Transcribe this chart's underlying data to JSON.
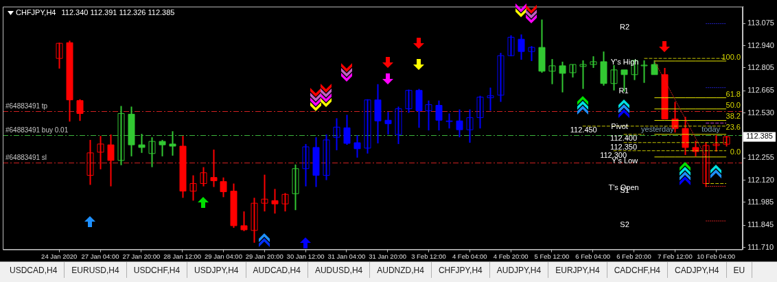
{
  "chart_data": {
    "type": "candlestick",
    "title": "CHFJPY,H4",
    "subtitle": "112.340 112.391 112.326 112.385",
    "categories": [
      "24 Jan 2020",
      null,
      null,
      null,
      "27 Jan 04:00",
      null,
      null,
      null,
      "27 Jan 20:00",
      null,
      null,
      null,
      "28 Jan 12:00",
      null,
      null,
      null,
      "29 Jan 04:00",
      null,
      null,
      null,
      "29 Jan 20:00",
      null,
      null,
      null,
      "30 Jan 12:00",
      null,
      null,
      null,
      "31 Jan 04:00",
      null,
      null,
      null,
      "31 Jan 20:00",
      null,
      null,
      null,
      "3 Feb 12:00",
      null,
      null,
      null,
      "4 Feb 04:00",
      null,
      null,
      null,
      "4 Feb 20:00",
      null,
      null,
      null,
      "5 Feb 12:00",
      null,
      null,
      null,
      "6 Feb 04:00",
      null,
      null,
      null,
      "6 Feb 20:00",
      null,
      null,
      null,
      "7 Feb 12:00",
      null,
      null,
      null,
      "10 Feb 04:00",
      null
    ],
    "ohlc": [
      [
        112.863,
        112.959,
        112.801,
        112.955
      ],
      [
        112.959,
        112.971,
        112.478,
        112.61
      ],
      [
        112.606,
        112.614,
        112.482,
        112.527
      ],
      [
        112.15,
        112.366,
        112.092,
        112.287
      ],
      [
        112.291,
        112.39,
        112.187,
        112.341
      ],
      [
        112.336,
        112.399,
        112.083,
        112.241
      ],
      [
        112.241,
        112.573,
        112.212,
        112.527
      ],
      [
        112.523,
        112.569,
        112.266,
        112.336
      ],
      [
        112.336,
        112.403,
        112.287,
        112.32
      ],
      [
        112.283,
        112.382,
        112.2,
        112.357
      ],
      [
        112.357,
        112.366,
        112.266,
        112.336
      ],
      [
        112.341,
        112.419,
        112.27,
        112.328
      ],
      [
        112.328,
        112.39,
        112.013,
        112.054
      ],
      [
        112.054,
        112.15,
        111.996,
        112.1
      ],
      [
        112.1,
        112.2,
        112.083,
        112.166
      ],
      [
        112.137,
        112.307,
        112.079,
        112.117
      ],
      [
        112.112,
        112.137,
        112.017,
        112.05
      ],
      [
        112.054,
        112.1,
        111.83,
        111.843
      ],
      [
        111.843,
        111.93,
        111.81,
        111.818
      ],
      [
        111.814,
        112.013,
        111.739,
        111.98
      ],
      [
        111.98,
        112.154,
        111.93,
        112.005
      ],
      [
        111.996,
        112.067,
        111.917,
        111.976
      ],
      [
        111.976,
        112.042,
        111.93,
        112.034
      ],
      [
        112.038,
        112.216,
        111.938,
        112.191
      ],
      [
        112.191,
        112.341,
        112.083,
        112.324
      ],
      [
        112.32,
        112.382,
        112.079,
        112.15
      ],
      [
        112.15,
        112.399,
        112.121,
        112.366
      ],
      [
        112.382,
        112.498,
        112.303,
        112.444
      ],
      [
        112.44,
        112.519,
        112.336,
        112.345
      ],
      [
        112.349,
        112.395,
        112.258,
        112.312
      ],
      [
        112.316,
        112.614,
        112.283,
        112.61
      ],
      [
        112.61,
        112.706,
        112.345,
        112.482
      ],
      [
        112.486,
        112.536,
        112.399,
        112.465
      ],
      [
        112.399,
        112.569,
        112.341,
        112.556
      ],
      [
        112.556,
        112.673,
        112.531,
        112.668
      ],
      [
        112.668,
        112.677,
        112.44,
        112.544
      ],
      [
        112.544,
        112.606,
        112.424,
        112.581
      ],
      [
        112.577,
        112.606,
        112.424,
        112.486
      ],
      [
        112.482,
        112.527,
        112.436,
        112.482
      ],
      [
        112.482,
        112.552,
        112.382,
        112.428
      ],
      [
        112.428,
        112.552,
        112.349,
        112.502
      ],
      [
        112.502,
        112.635,
        112.436,
        112.627
      ],
      [
        112.623,
        112.685,
        112.544,
        112.635
      ],
      [
        112.639,
        112.897,
        112.598,
        112.88
      ],
      [
        112.88,
        113.004,
        112.876,
        112.992
      ],
      [
        112.98,
        113.009,
        112.855,
        112.905
      ],
      [
        112.905,
        112.938,
        112.847,
        112.93
      ],
      [
        112.93,
        113.1,
        112.776,
        112.785
      ],
      [
        112.785,
        112.859,
        112.706,
        112.818
      ],
      [
        112.818,
        112.843,
        112.656,
        112.772
      ],
      [
        112.776,
        112.826,
        112.747,
        112.826
      ],
      [
        112.814,
        112.851,
        112.677,
        112.826
      ],
      [
        112.826,
        112.876,
        112.805,
        112.843
      ],
      [
        112.843,
        112.905,
        112.697,
        112.71
      ],
      [
        112.71,
        112.822,
        112.668,
        112.793
      ],
      [
        112.793,
        112.793,
        112.66,
        112.764
      ],
      [
        112.764,
        112.851,
        112.731,
        112.851
      ],
      [
        112.822,
        112.851,
        112.714,
        112.822
      ],
      [
        112.826,
        112.851,
        112.764,
        112.764
      ],
      [
        112.764,
        112.805,
        112.494,
        112.494
      ],
      [
        112.494,
        112.598,
        112.411,
        112.436
      ],
      [
        112.436,
        112.507,
        112.274,
        112.32
      ],
      [
        112.32,
        112.361,
        112.266,
        112.295
      ],
      [
        112.1,
        112.353,
        112.079,
        112.332
      ],
      [
        112.332,
        112.395,
        112.295,
        112.341
      ],
      [
        112.34,
        112.391,
        112.326,
        112.385
      ]
    ],
    "colors": [
      "#ff0000",
      "#ff0000",
      "#ff0000",
      "#ff0000",
      "#ff0000",
      "#ff0000",
      "#32c832",
      "#32c832",
      "#32c832",
      "#32c832",
      "#32c832",
      "#32c832",
      "#ff0000",
      "#ff0000",
      "#ff0000",
      "#ff0000",
      "#ff0000",
      "#ff0000",
      "#ff0000",
      "#ff0000",
      "#ff0000",
      "#ff0000",
      "#ff0000",
      "#32c832",
      "#0000ff",
      "#0000ff",
      "#0000ff",
      "#0000ff",
      "#0000ff",
      "#0000ff",
      "#0000ff",
      "#0000ff",
      "#0000ff",
      "#0000ff",
      "#0000ff",
      "#0000ff",
      "#0000ff",
      "#0000ff",
      "#0000ff",
      "#0000ff",
      "#0000ff",
      "#0000ff",
      "#0000ff",
      "#0000ff",
      "#0000ff",
      "#0000ff",
      "#0000ff",
      "#32c832",
      "#32c832",
      "#32c832",
      "#32c832",
      "#32c832",
      "#32c832",
      "#32c832",
      "#32c832",
      "#32c832",
      "#32c832",
      "#32c832",
      "#32c832",
      "#ff0000",
      "#ff0000",
      "#ff0000",
      "#ff0000",
      "#ff0000",
      "#ff0000",
      "#ff0000"
    ],
    "series": [
      {
        "type": "line",
        "color": "#c8c800",
        "line_style": "dashed",
        "values": [
          null,
          null,
          null,
          null,
          null,
          null,
          null,
          null,
          null,
          null,
          null,
          null,
          null,
          null,
          null,
          null,
          null,
          null,
          null,
          null,
          null,
          null,
          null,
          null,
          null,
          null,
          null,
          null,
          null,
          null,
          null,
          null,
          null,
          null,
          null,
          null,
          null,
          null,
          null,
          null,
          null,
          null,
          null,
          null,
          null,
          null,
          null,
          null,
          null,
          null,
          null,
          112.45,
          112.45,
          112.45,
          112.45,
          112.45,
          112.45,
          112.45,
          112.45,
          112.45,
          112.45,
          112.45,
          112.45,
          112.45,
          112.45,
          112.45
        ]
      },
      {
        "type": "line",
        "color": "#c8c800",
        "line_style": "dashed",
        "values": [
          null,
          null,
          null,
          null,
          null,
          null,
          null,
          null,
          null,
          null,
          null,
          null,
          null,
          null,
          null,
          null,
          null,
          null,
          null,
          null,
          null,
          null,
          null,
          null,
          null,
          null,
          null,
          null,
          null,
          null,
          null,
          null,
          null,
          null,
          null,
          null,
          null,
          null,
          null,
          null,
          null,
          null,
          null,
          null,
          null,
          null,
          null,
          null,
          null,
          null,
          null,
          null,
          null,
          null,
          null,
          112.4,
          112.4,
          112.4,
          null,
          null,
          null,
          null,
          null,
          null,
          null,
          null
        ]
      },
      {
        "type": "line",
        "color": "#c8c800",
        "line_style": "dashed",
        "values": [
          null,
          null,
          null,
          null,
          null,
          null,
          null,
          null,
          null,
          null,
          null,
          null,
          null,
          null,
          null,
          null,
          null,
          null,
          null,
          null,
          null,
          null,
          null,
          null,
          null,
          null,
          null,
          null,
          null,
          null,
          null,
          null,
          null,
          null,
          null,
          null,
          null,
          null,
          null,
          null,
          null,
          null,
          null,
          null,
          null,
          null,
          null,
          null,
          null,
          null,
          null,
          null,
          null,
          null,
          null,
          112.35,
          112.35,
          112.35,
          112.35,
          112.35,
          112.35,
          112.35,
          112.35,
          112.35,
          112.35,
          112.35
        ]
      },
      {
        "type": "line",
        "color": "#c8c800",
        "line_style": "dashed",
        "values": [
          null,
          null,
          null,
          null,
          null,
          null,
          null,
          null,
          null,
          null,
          null,
          null,
          null,
          null,
          null,
          null,
          null,
          null,
          null,
          null,
          null,
          null,
          null,
          null,
          null,
          null,
          null,
          null,
          null,
          null,
          null,
          null,
          null,
          null,
          null,
          null,
          null,
          null,
          null,
          null,
          null,
          null,
          null,
          null,
          null,
          null,
          null,
          null,
          null,
          null,
          null,
          null,
          null,
          null,
          112.3,
          112.3,
          112.3,
          112.3,
          112.3,
          112.3,
          112.3,
          112.3,
          112.3,
          112.3,
          112.3,
          112.3
        ]
      },
      {
        "type": "line",
        "color": "#c8c800",
        "line_style": "dashed",
        "values": [
          null,
          null,
          null,
          null,
          null,
          null,
          null,
          null,
          null,
          null,
          null,
          null,
          null,
          null,
          null,
          null,
          null,
          null,
          null,
          null,
          null,
          null,
          null,
          null,
          null,
          null,
          null,
          null,
          null,
          null,
          null,
          null,
          null,
          null,
          null,
          null,
          null,
          null,
          null,
          null,
          null,
          null,
          null,
          null,
          null,
          null,
          null,
          null,
          null,
          null,
          null,
          null,
          null,
          null,
          null,
          null,
          null,
          112.863,
          112.863,
          112.863,
          112.863,
          112.863,
          112.863,
          112.863,
          112.863,
          112.863
        ]
      },
      {
        "type": "line",
        "color": "#e6e600",
        "line_style": "solid",
        "values": [
          null,
          null,
          null,
          null,
          null,
          null,
          null,
          null,
          null,
          null,
          null,
          null,
          null,
          null,
          null,
          null,
          null,
          null,
          null,
          null,
          null,
          null,
          null,
          null,
          null,
          null,
          null,
          null,
          null,
          null,
          null,
          null,
          null,
          null,
          null,
          null,
          null,
          null,
          null,
          null,
          null,
          null,
          null,
          null,
          null,
          null,
          null,
          null,
          null,
          null,
          null,
          null,
          null,
          null,
          null,
          null,
          null,
          null,
          112.847,
          112.847,
          112.847,
          112.847,
          112.847,
          112.847,
          112.847,
          112.847
        ]
      },
      {
        "type": "line",
        "color": "#e6e600",
        "line_style": "solid",
        "values": [
          null,
          null,
          null,
          null,
          null,
          null,
          null,
          null,
          null,
          null,
          null,
          null,
          null,
          null,
          null,
          null,
          null,
          null,
          null,
          null,
          null,
          null,
          null,
          null,
          null,
          null,
          null,
          null,
          null,
          null,
          null,
          null,
          null,
          null,
          null,
          null,
          null,
          null,
          null,
          null,
          null,
          null,
          null,
          null,
          null,
          null,
          null,
          null,
          null,
          null,
          null,
          null,
          null,
          null,
          null,
          null,
          null,
          null,
          112.623,
          112.623,
          112.623,
          112.623,
          112.623,
          112.623,
          112.623,
          112.623
        ]
      },
      {
        "type": "line",
        "color": "#e6e600",
        "line_style": "solid",
        "values": [
          null,
          null,
          null,
          null,
          null,
          null,
          null,
          null,
          null,
          null,
          null,
          null,
          null,
          null,
          null,
          null,
          null,
          null,
          null,
          null,
          null,
          null,
          null,
          null,
          null,
          null,
          null,
          null,
          null,
          null,
          null,
          null,
          null,
          null,
          null,
          null,
          null,
          null,
          null,
          null,
          null,
          null,
          null,
          null,
          null,
          null,
          null,
          null,
          null,
          null,
          null,
          null,
          null,
          null,
          null,
          null,
          null,
          null,
          112.555,
          112.555,
          112.555,
          112.555,
          112.555,
          112.555,
          112.555,
          112.555
        ]
      },
      {
        "type": "line",
        "color": "#e6e600",
        "line_style": "solid",
        "values": [
          null,
          null,
          null,
          null,
          null,
          null,
          null,
          null,
          null,
          null,
          null,
          null,
          null,
          null,
          null,
          null,
          null,
          null,
          null,
          null,
          null,
          null,
          null,
          null,
          null,
          null,
          null,
          null,
          null,
          null,
          null,
          null,
          null,
          null,
          null,
          null,
          null,
          null,
          null,
          null,
          null,
          null,
          null,
          null,
          null,
          null,
          null,
          null,
          null,
          null,
          null,
          null,
          null,
          null,
          null,
          null,
          null,
          null,
          112.485,
          112.485,
          112.485,
          112.485,
          112.485,
          112.485,
          112.485,
          112.485
        ]
      },
      {
        "type": "line",
        "color": "#e6e600",
        "line_style": "solid",
        "values": [
          null,
          null,
          null,
          null,
          null,
          null,
          null,
          null,
          null,
          null,
          null,
          null,
          null,
          null,
          null,
          null,
          null,
          null,
          null,
          null,
          null,
          null,
          null,
          null,
          null,
          null,
          null,
          null,
          null,
          null,
          null,
          null,
          null,
          null,
          null,
          null,
          null,
          null,
          null,
          null,
          null,
          null,
          null,
          null,
          null,
          null,
          null,
          null,
          null,
          null,
          null,
          null,
          null,
          null,
          null,
          null,
          null,
          null,
          112.4,
          112.4,
          112.4,
          112.4,
          112.4,
          112.4,
          112.4,
          112.4
        ]
      },
      {
        "type": "line",
        "color": "#e6e600",
        "line_style": "solid",
        "values": [
          null,
          null,
          null,
          null,
          null,
          null,
          null,
          null,
          null,
          null,
          null,
          null,
          null,
          null,
          null,
          null,
          null,
          null,
          null,
          null,
          null,
          null,
          null,
          null,
          null,
          null,
          null,
          null,
          null,
          null,
          null,
          null,
          null,
          null,
          null,
          null,
          null,
          null,
          null,
          null,
          null,
          null,
          null,
          null,
          null,
          null,
          null,
          null,
          null,
          null,
          null,
          null,
          null,
          null,
          null,
          null,
          null,
          null,
          112.262,
          112.262,
          112.262,
          112.262,
          112.262,
          112.262,
          112.262,
          112.262
        ]
      },
      {
        "type": "line",
        "color": "#2020c0",
        "line_style": "dotted",
        "values": [
          null,
          null,
          null,
          null,
          null,
          null,
          null,
          null,
          null,
          null,
          null,
          null,
          null,
          null,
          null,
          null,
          null,
          null,
          null,
          null,
          null,
          null,
          null,
          null,
          null,
          null,
          null,
          null,
          null,
          null,
          null,
          null,
          null,
          null,
          null,
          null,
          null,
          null,
          null,
          null,
          null,
          null,
          null,
          null,
          null,
          null,
          null,
          null,
          null,
          null,
          null,
          null,
          null,
          null,
          null,
          null,
          null,
          null,
          null,
          null,
          null,
          null,
          null,
          113.075,
          113.075,
          113.075
        ]
      },
      {
        "type": "line",
        "color": "#2020c0",
        "line_style": "dotted",
        "values": [
          null,
          null,
          null,
          null,
          null,
          null,
          null,
          null,
          null,
          null,
          null,
          null,
          null,
          null,
          null,
          null,
          null,
          null,
          null,
          null,
          null,
          null,
          null,
          null,
          null,
          null,
          null,
          null,
          null,
          null,
          null,
          null,
          null,
          null,
          null,
          null,
          null,
          null,
          null,
          null,
          null,
          null,
          null,
          null,
          null,
          null,
          null,
          null,
          null,
          null,
          null,
          null,
          null,
          null,
          null,
          null,
          null,
          null,
          null,
          null,
          null,
          null,
          null,
          112.685,
          112.685,
          112.685
        ]
      },
      {
        "type": "line",
        "color": "#c040c0",
        "line_style": "dashed",
        "values": [
          null,
          null,
          null,
          null,
          null,
          null,
          null,
          null,
          null,
          null,
          null,
          null,
          null,
          null,
          null,
          null,
          null,
          null,
          null,
          null,
          null,
          null,
          null,
          null,
          null,
          null,
          null,
          null,
          null,
          null,
          null,
          null,
          null,
          null,
          null,
          null,
          null,
          null,
          null,
          null,
          null,
          null,
          null,
          null,
          null,
          null,
          null,
          null,
          null,
          null,
          null,
          null,
          null,
          null,
          null,
          null,
          null,
          null,
          null,
          null,
          null,
          null,
          null,
          112.469,
          112.469,
          112.469
        ]
      },
      {
        "type": "line",
        "color": "#c8c800",
        "line_style": "dashed",
        "values": [
          null,
          null,
          null,
          null,
          null,
          null,
          null,
          null,
          null,
          null,
          null,
          null,
          null,
          null,
          null,
          null,
          null,
          null,
          null,
          null,
          null,
          null,
          null,
          null,
          null,
          null,
          null,
          null,
          null,
          null,
          null,
          null,
          null,
          null,
          null,
          null,
          null,
          null,
          null,
          null,
          null,
          null,
          null,
          null,
          null,
          null,
          null,
          null,
          null,
          null,
          null,
          null,
          null,
          null,
          null,
          null,
          null,
          null,
          null,
          null,
          null,
          null,
          null,
          112.1,
          112.1,
          112.1
        ]
      },
      {
        "type": "line",
        "color": "#d02020",
        "line_style": "dotted",
        "values": [
          null,
          null,
          null,
          null,
          null,
          null,
          null,
          null,
          null,
          null,
          null,
          null,
          null,
          null,
          null,
          null,
          null,
          null,
          null,
          null,
          null,
          null,
          null,
          null,
          null,
          null,
          null,
          null,
          null,
          null,
          null,
          null,
          null,
          null,
          null,
          null,
          null,
          null,
          null,
          null,
          null,
          null,
          null,
          null,
          null,
          null,
          null,
          null,
          null,
          null,
          null,
          null,
          null,
          null,
          null,
          null,
          null,
          null,
          null,
          null,
          null,
          null,
          null,
          112.083,
          112.083,
          112.083
        ]
      },
      {
        "type": "line",
        "color": "#d02020",
        "line_style": "dotted",
        "values": [
          null,
          null,
          null,
          null,
          null,
          null,
          null,
          null,
          null,
          null,
          null,
          null,
          null,
          null,
          null,
          null,
          null,
          null,
          null,
          null,
          null,
          null,
          null,
          null,
          null,
          null,
          null,
          null,
          null,
          null,
          null,
          null,
          null,
          null,
          null,
          null,
          null,
          null,
          null,
          null,
          null,
          null,
          null,
          null,
          null,
          null,
          null,
          null,
          null,
          null,
          null,
          null,
          null,
          null,
          null,
          null,
          null,
          null,
          null,
          null,
          null,
          null,
          null,
          111.872,
          111.872,
          111.872
        ]
      },
      {
        "type": "line",
        "color": "#d02020",
        "line_style": "dotted",
        "values": [
          null,
          null,
          null,
          null,
          null,
          null,
          null,
          null,
          null,
          null,
          null,
          null,
          null,
          null,
          null,
          null,
          null,
          null,
          null,
          null,
          null,
          null,
          null,
          null,
          null,
          null,
          null,
          null,
          null,
          null,
          null,
          null,
          null,
          null,
          null,
          null,
          null,
          null,
          null,
          null,
          null,
          null,
          null,
          null,
          null,
          null,
          null,
          null,
          null,
          null,
          null,
          null,
          null,
          null,
          null,
          null,
          null,
          null,
          112.847,
          null,
          null,
          null,
          null,
          112.262,
          null,
          null
        ]
      }
    ],
    "ref_lines": [
      {
        "axis": "y",
        "value": 112.54,
        "label": "#64883491 tp",
        "color": "#d02020",
        "line_style": "dashed"
      },
      {
        "axis": "y",
        "value": 112.395,
        "label": "#64883491 buy 0.01",
        "color": "#3cb43c",
        "line_style": "dashed"
      },
      {
        "axis": "y",
        "value": 112.229,
        "label": "#64883491 sl",
        "color": "#d02020",
        "line_style": "dashed"
      }
    ],
    "annotations": [
      "R2",
      "Y's High",
      "R1",
      "Pivot",
      "yesterday",
      "today",
      "112.450",
      "112.400",
      "112.350",
      "112.300",
      "Y's Low",
      "T's Open",
      "S1",
      "S2",
      "100.0",
      "61.8",
      "50.0",
      "38.2",
      "23.6",
      "0.0",
      "112.385",
      "USDCAD,H4",
      "EURUSD,H4",
      "USDCHF,H4",
      "USDJPY,H4",
      "AUDCAD,H4",
      "AUDUSD,H4",
      "AUDNZD,H4",
      "CHFJPY,H4",
      "AUDJPY,H4",
      "EURJPY,H4",
      "CADCHF,H4",
      "CADJPY,H4",
      "EU"
    ],
    "ylim": [
      111.698,
      113.179
    ],
    "yticks": [
      113.075,
      {
        "value": 112.94,
        "label": "112.940"
      },
      112.805,
      112.665,
      {
        "value": 112.53,
        "label": "112.530"
      },
      112.255,
      {
        "value": 112.12,
        "label": "112.120"
      },
      111.985,
      111.845,
      {
        "value": 111.71,
        "label": "111.710"
      }
    ]
  }
}
